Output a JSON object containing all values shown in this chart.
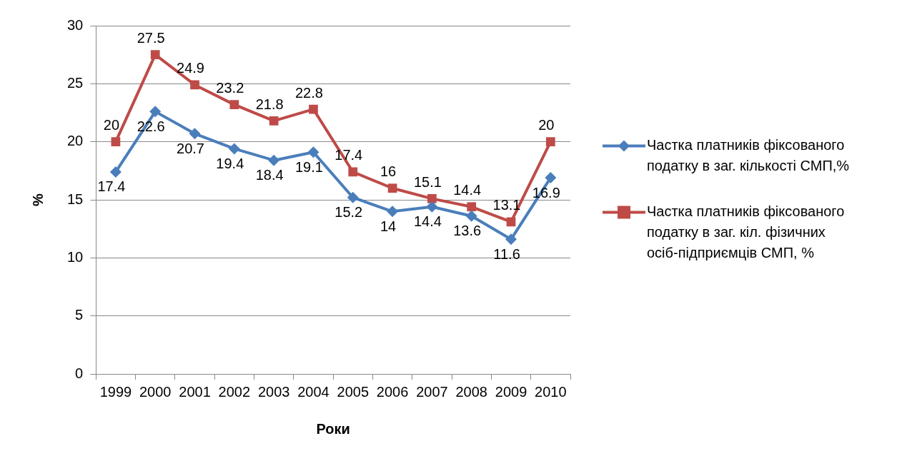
{
  "chart_data": {
    "type": "line",
    "xlabel": "Роки",
    "ylabel": "%",
    "categories": [
      "1999",
      "2000",
      "2001",
      "2002",
      "2003",
      "2004",
      "2005",
      "2006",
      "2007",
      "2008",
      "2009",
      "2010"
    ],
    "series": [
      {
        "name": "Частка платників фіксованого податку в заг. кількості СМП,%",
        "color": "#4a7ebb",
        "marker": "diamond",
        "values": [
          17.4,
          22.6,
          20.7,
          19.4,
          18.4,
          19.1,
          15.2,
          14,
          14.4,
          13.6,
          11.6,
          16.9
        ]
      },
      {
        "name": "Частка платників фіксованого податку в заг. кіл. фізичних осіб-підприємців СМП, %",
        "color": "#be4b48",
        "marker": "square",
        "values": [
          20,
          27.5,
          24.9,
          23.2,
          21.8,
          22.8,
          17.4,
          16,
          15.1,
          14.4,
          13.1,
          20
        ]
      }
    ],
    "ylim": [
      0,
      30
    ],
    "yticks": [
      0,
      5,
      10,
      15,
      20,
      25,
      30
    ],
    "grid": "y",
    "legend": "right",
    "data_labels": true,
    "line_style": "solid"
  }
}
